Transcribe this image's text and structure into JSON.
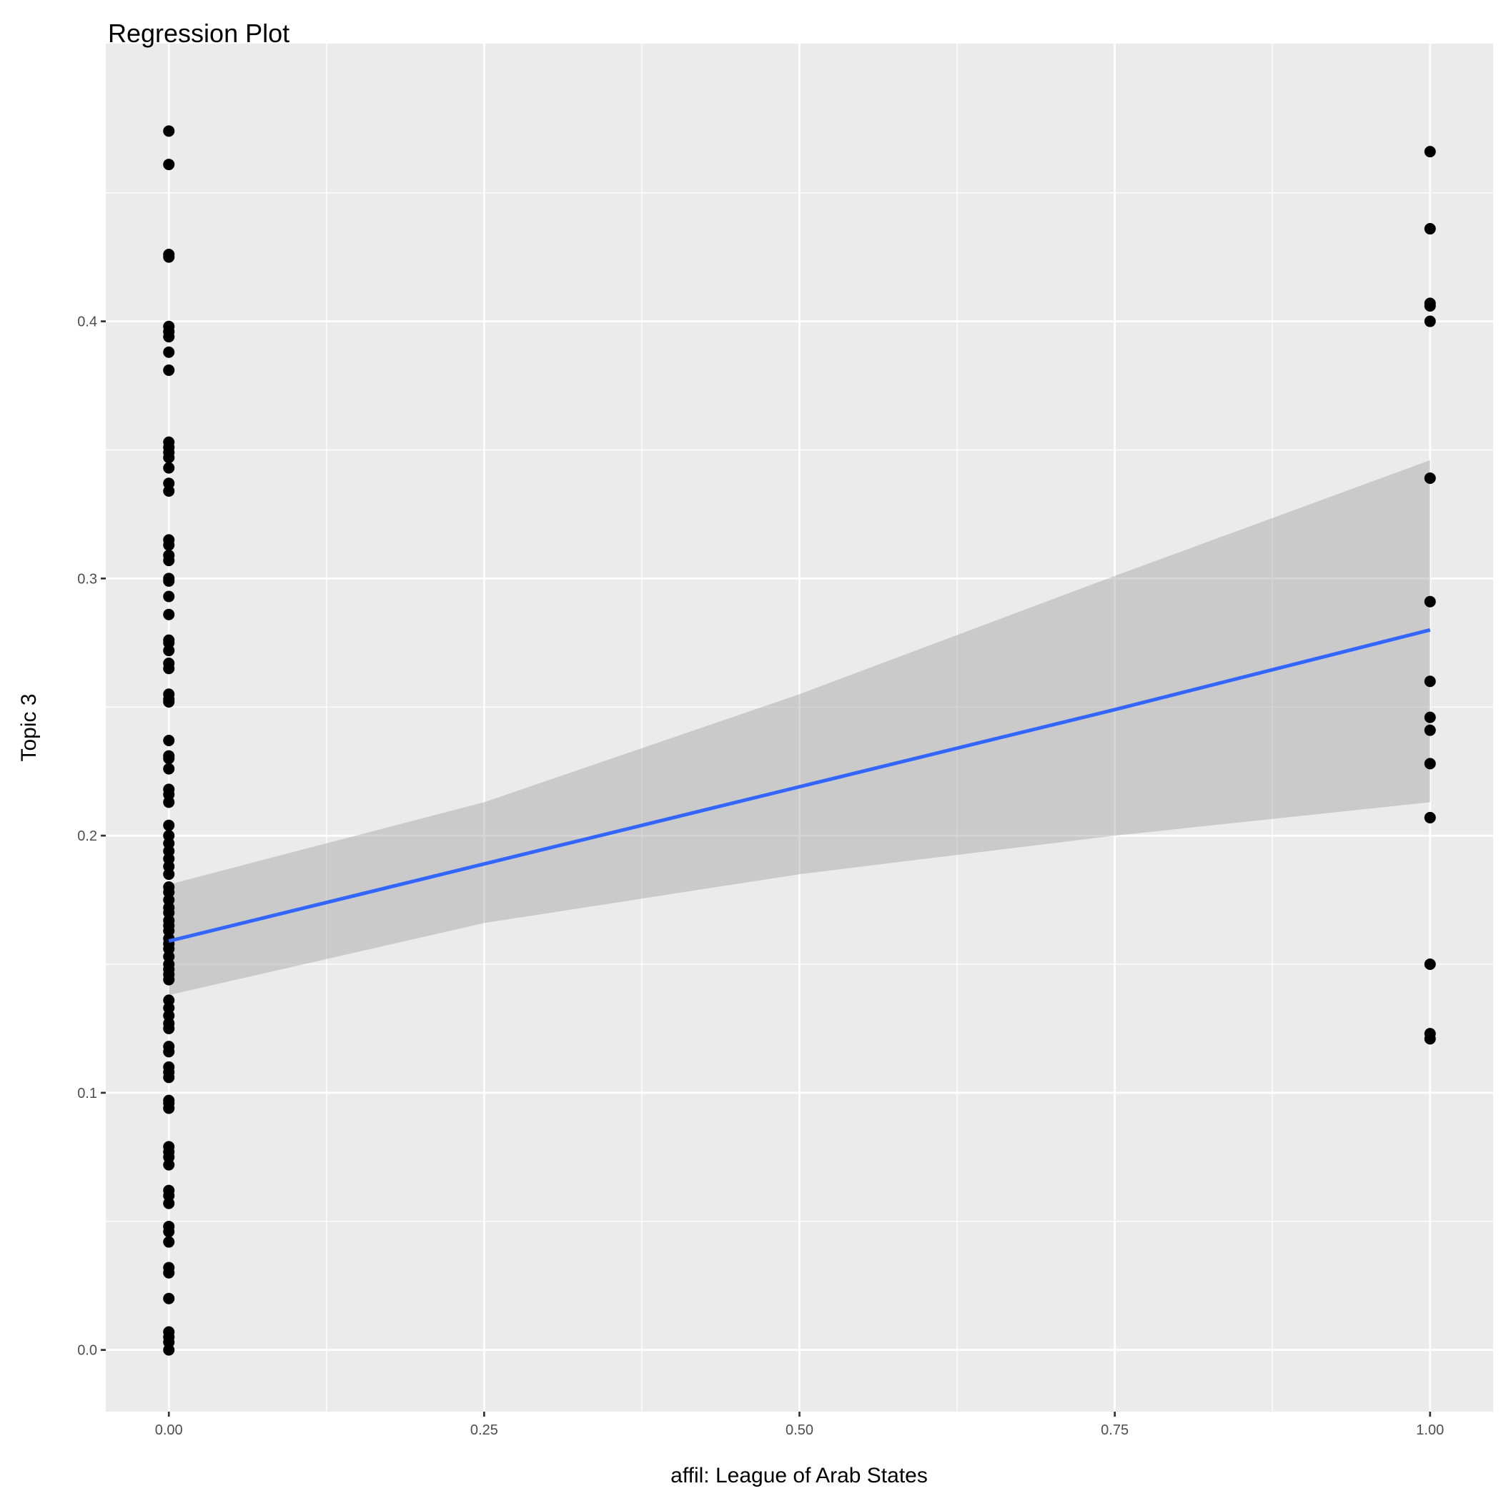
{
  "chart_data": {
    "type": "scatter",
    "title": "Regression Plot",
    "xlabel": "affil: League of Arab States",
    "ylabel": "Topic 3",
    "xlim": [
      -0.05,
      1.05
    ],
    "ylim": [
      -0.024,
      0.508
    ],
    "x_ticks": [
      0,
      0.25,
      0.5,
      0.75,
      1
    ],
    "x_tick_labels": [
      "0.00",
      "0.25",
      "0.50",
      "0.75",
      "1.00"
    ],
    "y_ticks": [
      0,
      0.1,
      0.2,
      0.3,
      0.4
    ],
    "y_tick_labels": [
      "0.0",
      "0.1",
      "0.2",
      "0.3",
      "0.4"
    ],
    "grid": true,
    "colors": {
      "panel": "#EBEBEB",
      "grid": "#FFFFFF",
      "points": "#000000",
      "line": "#3366FF",
      "ribbon": "#999999"
    },
    "points": [
      {
        "x": 0,
        "y": [
          0.474,
          0.461,
          0.426,
          0.425,
          0.398,
          0.396,
          0.394,
          0.388,
          0.381,
          0.353,
          0.351,
          0.349,
          0.347,
          0.343,
          0.337,
          0.334,
          0.315,
          0.313,
          0.309,
          0.307,
          0.3,
          0.299,
          0.293,
          0.286,
          0.276,
          0.275,
          0.272,
          0.267,
          0.265,
          0.255,
          0.253,
          0.252,
          0.237,
          0.231,
          0.23,
          0.226,
          0.218,
          0.216,
          0.213,
          0.204,
          0.2,
          0.197,
          0.194,
          0.191,
          0.188,
          0.185,
          0.18,
          0.178,
          0.175,
          0.172,
          0.17,
          0.167,
          0.165,
          0.163,
          0.16,
          0.158,
          0.156,
          0.153,
          0.15,
          0.148,
          0.146,
          0.144,
          0.136,
          0.133,
          0.13,
          0.127,
          0.125,
          0.118,
          0.116,
          0.11,
          0.108,
          0.106,
          0.097,
          0.096,
          0.094,
          0.079,
          0.077,
          0.075,
          0.072,
          0.062,
          0.06,
          0.057,
          0.048,
          0.046,
          0.042,
          0.032,
          0.03,
          0.02,
          0.007,
          0.005,
          0.003,
          0.0
        ]
      },
      {
        "x": 1,
        "y": [
          0.466,
          0.436,
          0.407,
          0.406,
          0.4,
          0.339,
          0.291,
          0.26,
          0.246,
          0.241,
          0.228,
          0.207,
          0.15,
          0.123,
          0.121
        ]
      }
    ],
    "regression": {
      "x": [
        0,
        0.25,
        0.5,
        0.75,
        1
      ],
      "fit": [
        0.159,
        0.189,
        0.219,
        0.249,
        0.28
      ],
      "ci_lower": [
        0.138,
        0.166,
        0.185,
        0.2,
        0.213
      ],
      "ci_upper": [
        0.181,
        0.213,
        0.255,
        0.301,
        0.346
      ]
    }
  }
}
